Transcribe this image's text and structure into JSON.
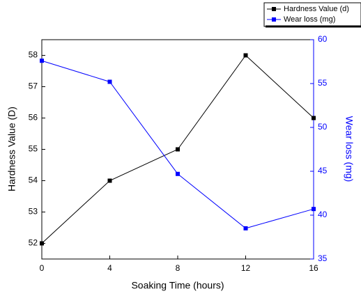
{
  "chart_data": {
    "type": "line",
    "x": [
      0,
      4,
      8,
      12,
      16
    ],
    "xlabel": "Soaking Time (hours)",
    "ylabel": "Hardness Value (D)",
    "y2label": "Wear loss (mg)",
    "xlim": [
      0,
      16
    ],
    "xticks": [
      0,
      4,
      8,
      12,
      16
    ],
    "ylim": [
      51.5,
      58.5
    ],
    "yticks": [
      52,
      53,
      54,
      55,
      56,
      57,
      58
    ],
    "y2lim": [
      35,
      60
    ],
    "y2ticks": [
      35,
      40,
      45,
      50,
      55,
      60
    ],
    "legend": "top-right",
    "series": [
      {
        "name": "Hardness Value (d)",
        "color": "#000000",
        "values": [
          52,
          54,
          55,
          58,
          56
        ]
      },
      {
        "name": "Wear loss (mg)",
        "color": "#0000ff",
        "axis": "y2",
        "values": [
          57.6,
          55.2,
          44.7,
          38.5,
          40.7
        ]
      }
    ]
  }
}
